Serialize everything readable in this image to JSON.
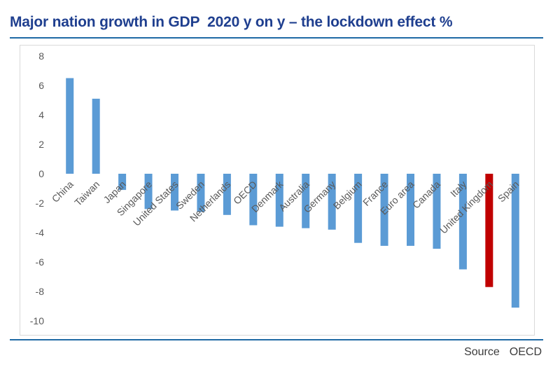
{
  "chart_data": {
    "type": "bar",
    "title": "Major nation growth in GDP  2020 y on y – the lockdown effect %",
    "categories": [
      "China",
      "Taiwan",
      "Japan",
      "Singapore",
      "United States",
      "Sweden",
      "Netherlands",
      "OECD",
      "Denmark",
      "Australia",
      "Germany",
      "Belgium",
      "France",
      "Euro area",
      "Canada",
      "Italy",
      "United Kingdom",
      "Spain"
    ],
    "values": [
      6.5,
      5.1,
      -1.1,
      -2.4,
      -2.5,
      -2.6,
      -2.8,
      -3.5,
      -3.6,
      -3.7,
      -3.8,
      -4.7,
      -4.9,
      -4.9,
      -5.1,
      -6.5,
      -7.7,
      -9.1
    ],
    "highlight": {
      "category": "United Kingdom",
      "color": "#c00000"
    },
    "bar_color": "#5b9bd5",
    "ylim": [
      -11,
      8
    ],
    "yticks": [
      8,
      6,
      4,
      2,
      0,
      -2,
      -4,
      -6,
      -8,
      -10
    ],
    "xlabel": "",
    "ylabel": "",
    "grid": false
  },
  "footer": {
    "source_label": "Source",
    "source_value": "OECD"
  },
  "colors": {
    "title": "#1f3f8f",
    "rule": "#1f6aa5"
  }
}
